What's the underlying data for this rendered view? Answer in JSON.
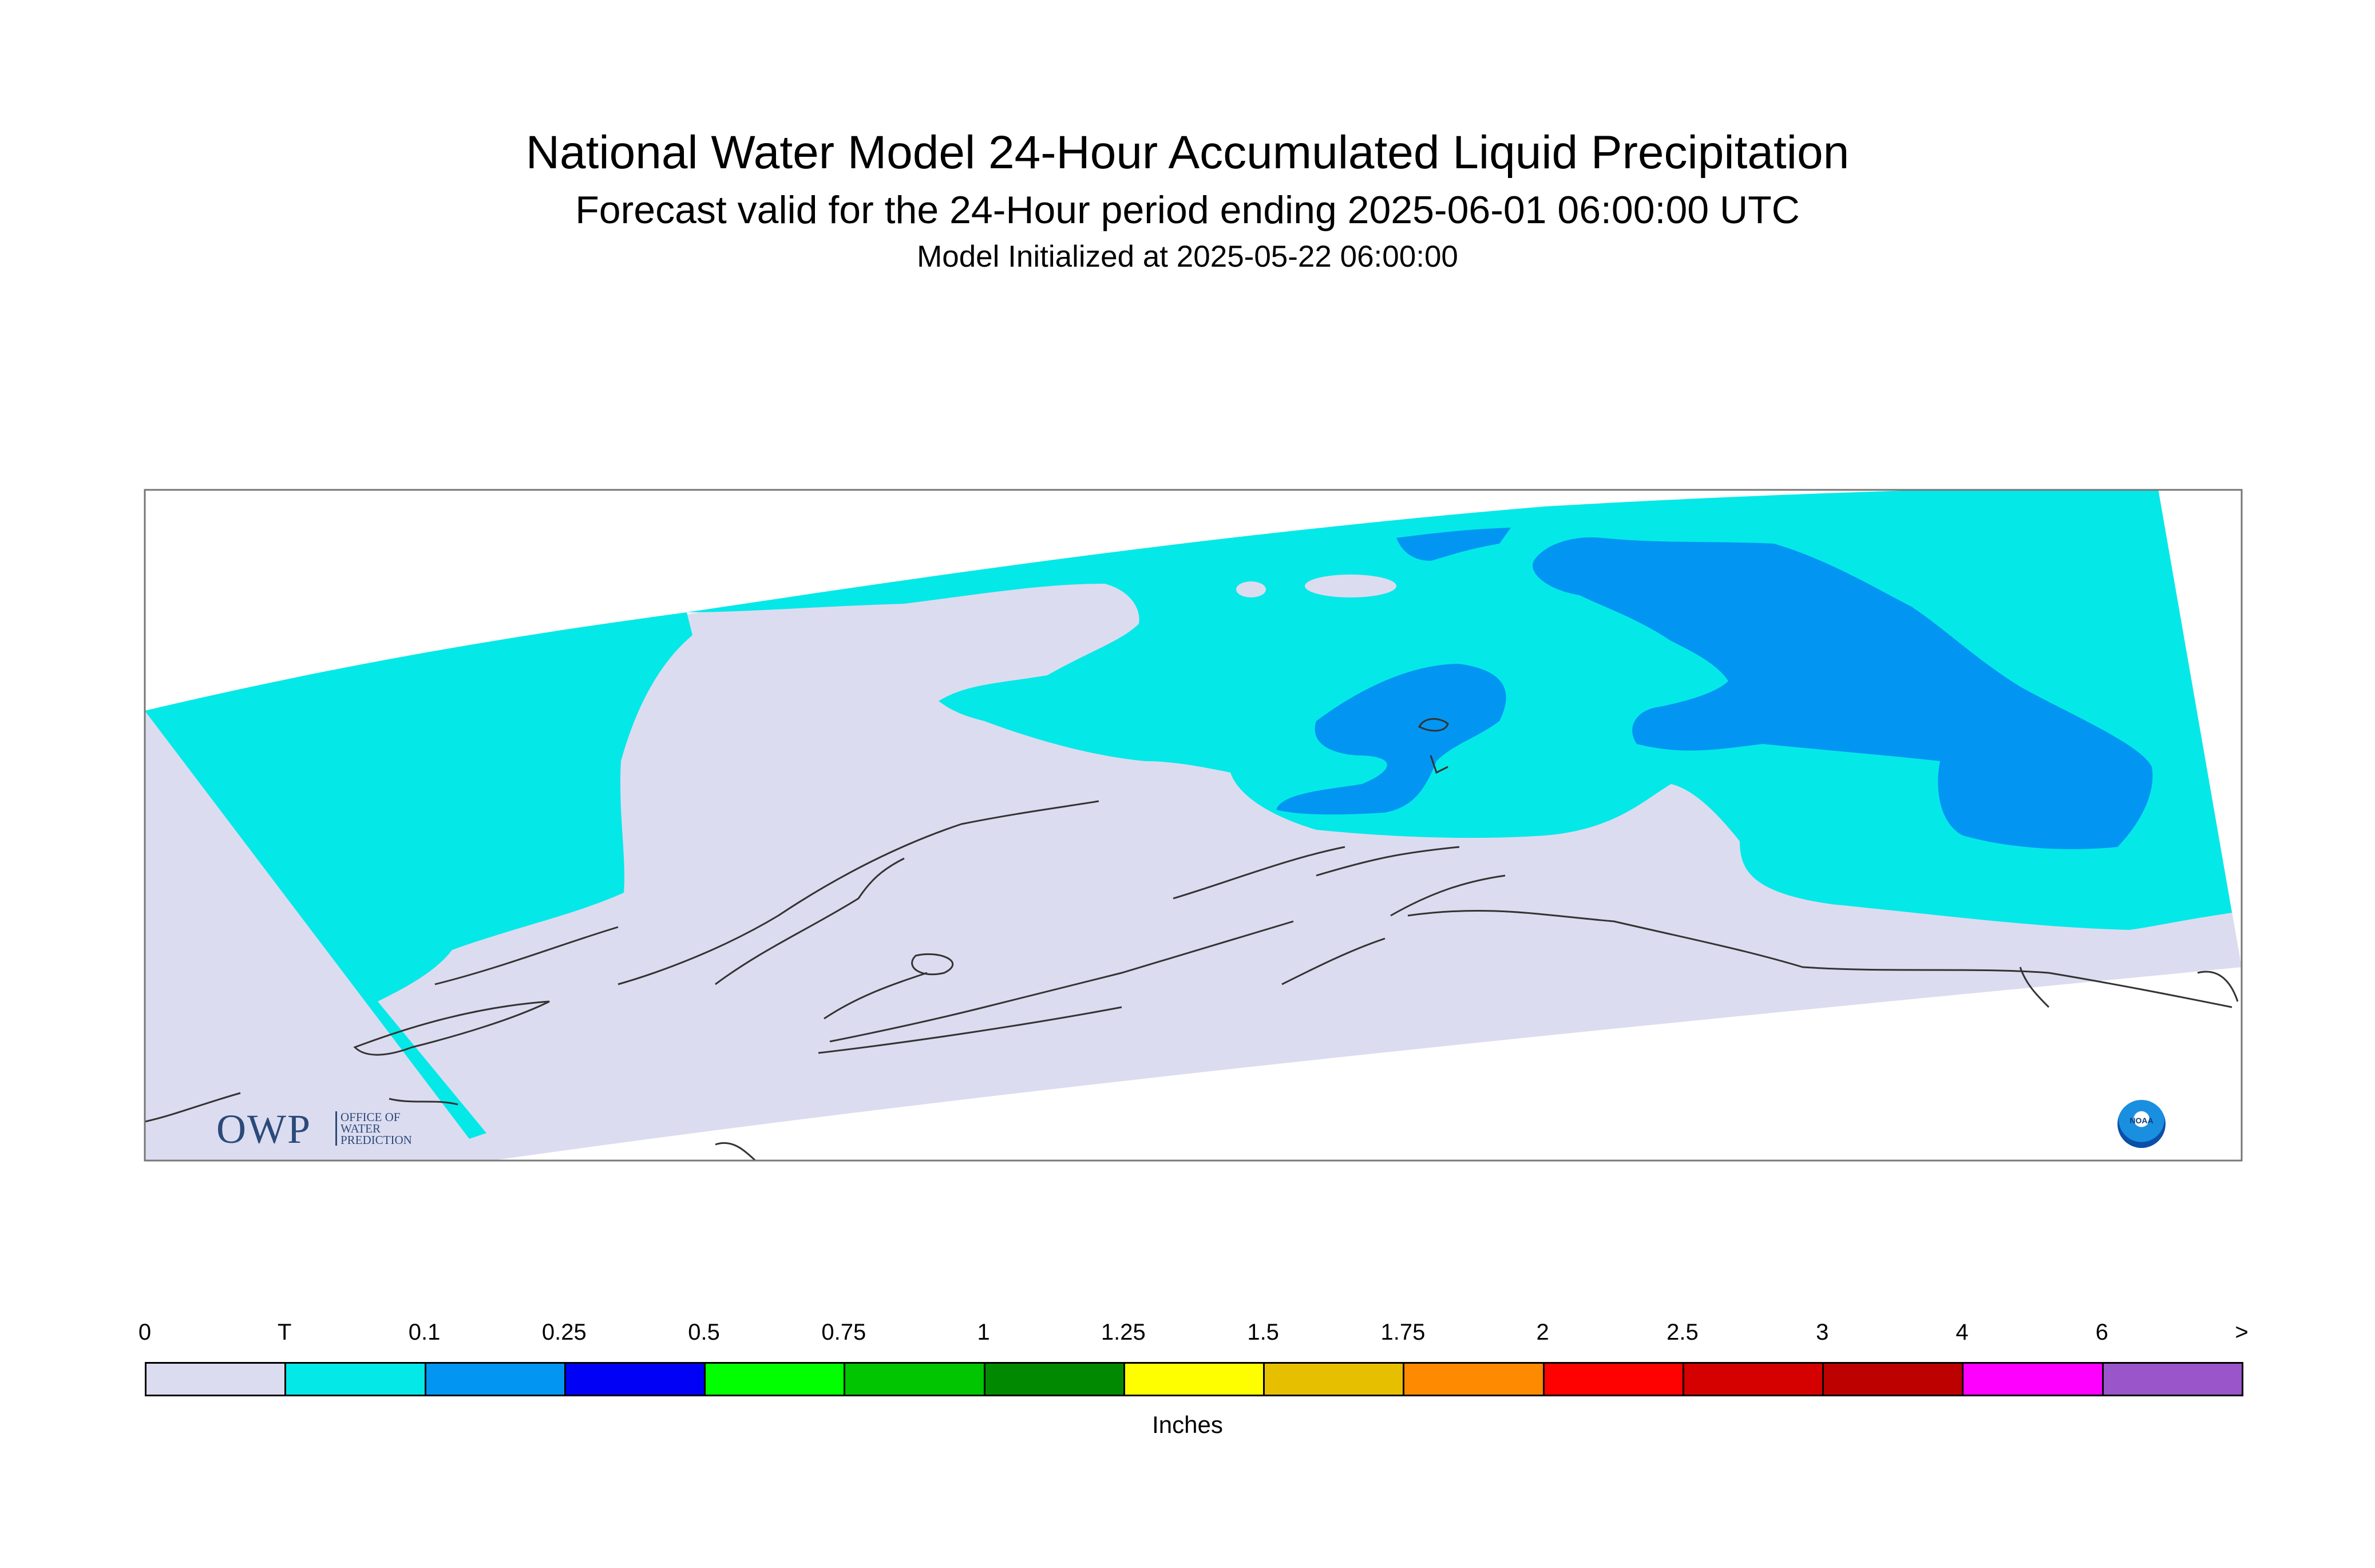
{
  "title": "National Water Model 24-Hour Accumulated Liquid Precipitation",
  "subtitle": "Forecast valid for the 24-Hour period ending 2025-06-01 06:00:00 UTC",
  "init_line": "Model Initialized at 2025-05-22 06:00:00",
  "units_label": "Inches",
  "logos": {
    "owp_abbrev": "OWP",
    "owp_line1": "OFFICE OF",
    "owp_line2": "WATER",
    "owp_line3": "PREDICTION",
    "noaa": "NOAA"
  },
  "legend": {
    "tick_labels": [
      "0",
      "T",
      "0.1",
      "0.25",
      "0.5",
      "0.75",
      "1",
      "1.25",
      "1.5",
      "1.75",
      "2",
      "2.5",
      "3",
      "4",
      "6",
      ">"
    ],
    "colors": [
      "#dcdcf0",
      "#05e8e8",
      "#0296f2",
      "#0101f6",
      "#01fe01",
      "#01c501",
      "#018a01",
      "#fefe01",
      "#e6bf01",
      "#fd8a01",
      "#fe0101",
      "#d50101",
      "#bd0101",
      "#fe01fe",
      "#9955c9"
    ]
  },
  "precip_colors": {
    "zero": "#dcdcf0",
    "trace": "#05e8e8",
    "light": "#0296f2"
  }
}
